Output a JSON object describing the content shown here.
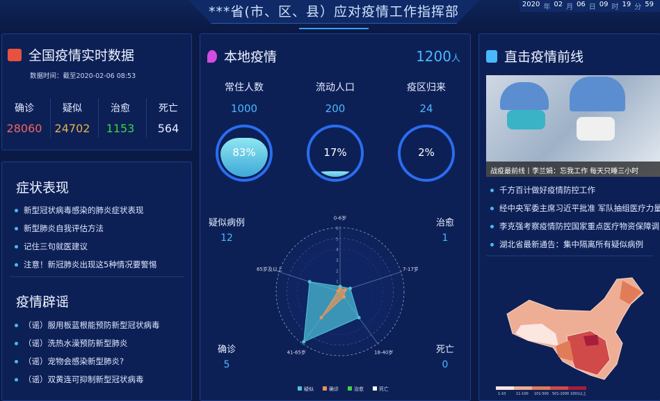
{
  "header": {
    "title": "***省(市、区、县）应对疫情工作指挥部",
    "clock": [
      {
        "v": "2020",
        "u": "年"
      },
      {
        "v": "02",
        "u": "月"
      },
      {
        "v": "06",
        "u": "日"
      },
      {
        "v": "09",
        "u": "时"
      },
      {
        "v": "19",
        "u": "分"
      },
      {
        "v": "59",
        "u": ""
      }
    ]
  },
  "national": {
    "title": "全国疫情实时数据",
    "time": "数据时间：截至2020-02-06 08:53",
    "stats": [
      {
        "label": "确诊",
        "value": "28060",
        "color": "#f2665e"
      },
      {
        "label": "疑似",
        "value": "24702",
        "color": "#e8b24a"
      },
      {
        "label": "治愈",
        "value": "1153",
        "color": "#3fd34a"
      },
      {
        "label": "死亡",
        "value": "564",
        "color": "#e6eeff"
      }
    ]
  },
  "symptoms": {
    "title": "症状表现",
    "items": [
      "新型冠状病毒感染的肺炎症状表现",
      "新型肺炎自我评估方法",
      "记住三句就医建议",
      "注意！新冠肺炎出现这5种情况要警惕"
    ]
  },
  "rumors": {
    "title": "疫情辟谣",
    "items": [
      "（谣）服用板蓝根能预防新型冠状病毒",
      "（谣）洗热水澡预防新型肺炎",
      "（谣）宠物会感染新型肺炎?",
      "（谣）双黄连可抑制新型冠状病毒"
    ]
  },
  "local": {
    "title": "本地疫情",
    "total": "1200",
    "unit": "人",
    "cols": [
      {
        "label": "常住人数",
        "value": "1000",
        "percent": 83,
        "text": "83%"
      },
      {
        "label": "流动人口",
        "value": "200",
        "percent": 17,
        "text": "17%"
      },
      {
        "label": "疫区归来",
        "value": "24",
        "percent": 2,
        "text": "2%"
      }
    ],
    "corners": {
      "suspected": {
        "label": "疑似病例",
        "value": "12"
      },
      "cured": {
        "label": "治愈",
        "value": "1"
      },
      "confirmed": {
        "label": "确诊",
        "value": "5"
      },
      "dead": {
        "label": "死亡",
        "value": "0"
      }
    }
  },
  "chart_data": {
    "type": "radar",
    "axes": [
      "0-6岁",
      "7-17岁",
      "18-40岁",
      "41-65岁",
      "65岁及以上"
    ],
    "max": 6,
    "ticks": [
      1,
      2,
      3,
      4,
      5,
      6
    ],
    "series": [
      {
        "name": "疑似",
        "color": "#4fc3d9",
        "values": [
          0.5,
          1,
          3,
          5.8,
          3
        ]
      },
      {
        "name": "确诊",
        "color": "#e8955a",
        "values": [
          0.3,
          0.5,
          0.6,
          3,
          0.2
        ]
      },
      {
        "name": "治愈",
        "color": "#3fd34a",
        "values": [
          0,
          0,
          0,
          0,
          0
        ]
      },
      {
        "name": "死亡",
        "color": "#ffffff",
        "values": [
          0,
          0,
          0,
          0,
          0
        ]
      }
    ],
    "legend": "bottom"
  },
  "frontline": {
    "title": "直击疫情前线",
    "caption": "战疫最前线丨李兰娟：忘我工作 每天只睡三小时",
    "items": [
      "千方百计做好疫情防控工作",
      "经中央军委主席习近平批准 军队抽组医疗力量",
      "李克强考察疫情防控国家重点医疗物资保障调",
      "湖北省最新通告：集中隔离所有疑似病例"
    ],
    "map_legend": [
      {
        "label": "1-10",
        "color": "#fbe6e0"
      },
      {
        "label": "11-100",
        "color": "#eeae95"
      },
      {
        "label": "101-500",
        "color": "#e07c58"
      },
      {
        "label": "501-1000",
        "color": "#d04a4a"
      },
      {
        "label": "1001以上",
        "color": "#a81c3e"
      }
    ]
  }
}
